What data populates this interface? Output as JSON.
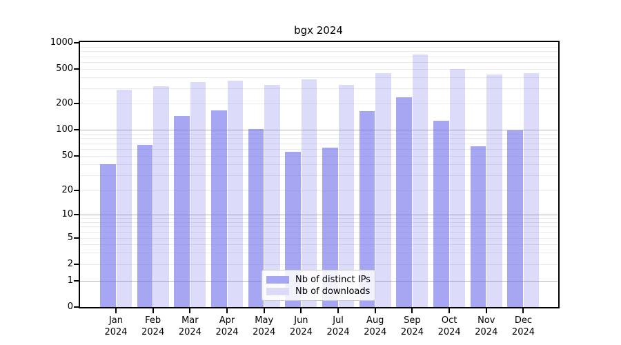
{
  "title": "bgx 2024",
  "legend": {
    "items": [
      "Nb of distinct IPs",
      "Nb of downloads"
    ]
  },
  "chart_data": {
    "type": "bar",
    "title": "bgx 2024",
    "categories": [
      "Jan",
      "Feb",
      "Mar",
      "Apr",
      "May",
      "Jun",
      "Jul",
      "Aug",
      "Sep",
      "Oct",
      "Nov",
      "Dec"
    ],
    "x_year_line": "2024",
    "series": [
      {
        "name": "Nb of distinct IPs",
        "values": [
          40,
          67,
          145,
          167,
          101,
          56,
          62,
          164,
          237,
          127,
          65,
          99
        ]
      },
      {
        "name": "Nb of downloads",
        "values": [
          290,
          315,
          350,
          365,
          330,
          380,
          330,
          450,
          740,
          500,
          430,
          450
        ]
      }
    ],
    "yscale": "log-like (decades 1..1000 with 0 baseline)",
    "yticks": [
      1000,
      500,
      200,
      100,
      50,
      20,
      10,
      5,
      2,
      1,
      0
    ],
    "ylim": [
      0,
      1000
    ],
    "grid": true,
    "legend_position": "lower center",
    "colors": {
      "distinct_ips_solid": "#a6a6f2",
      "downloads_solid": "#dbdbf8",
      "bar_base_rgb": "107,107,233",
      "grid_major": "#b2b2b2",
      "grid_minor": "#eaeaea"
    }
  }
}
